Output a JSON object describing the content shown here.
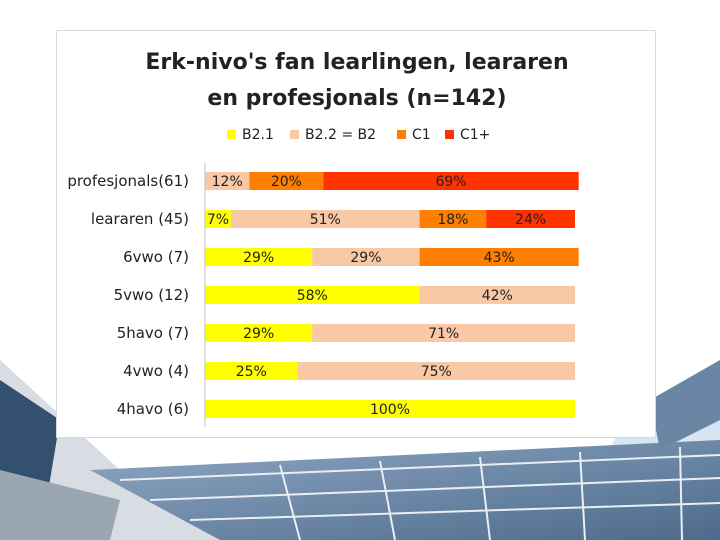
{
  "chart_data": {
    "type": "bar",
    "orientation": "horizontal",
    "stacked": true,
    "percent": true,
    "title": [
      "Erk-nivo's fan learlingen, leararen",
      "en profesjonals (n=142)"
    ],
    "legend_position": "top",
    "categories": [
      "profesjonals(61)",
      "leararen  (45)",
      "6vwo (7)",
      "5vwo (12)",
      "5havo (7)",
      "4vwo (4)",
      "4havo (6)"
    ],
    "series": [
      {
        "name": "B2.1",
        "color": "#ffff00",
        "values": [
          0,
          7,
          29,
          58,
          29,
          25,
          100
        ]
      },
      {
        "name": "B2.2 = B2",
        "color": "#f9c9a6",
        "values": [
          12,
          51,
          29,
          42,
          71,
          75,
          0
        ]
      },
      {
        "name": "C1",
        "color": "#ff7f00",
        "values": [
          20,
          18,
          43,
          0,
          0,
          0,
          0
        ]
      },
      {
        "name": "C1+",
        "color": "#ff3300",
        "values": [
          69,
          24,
          0,
          0,
          0,
          0,
          0
        ]
      }
    ],
    "grid": false,
    "xlim": [
      0,
      100
    ]
  }
}
